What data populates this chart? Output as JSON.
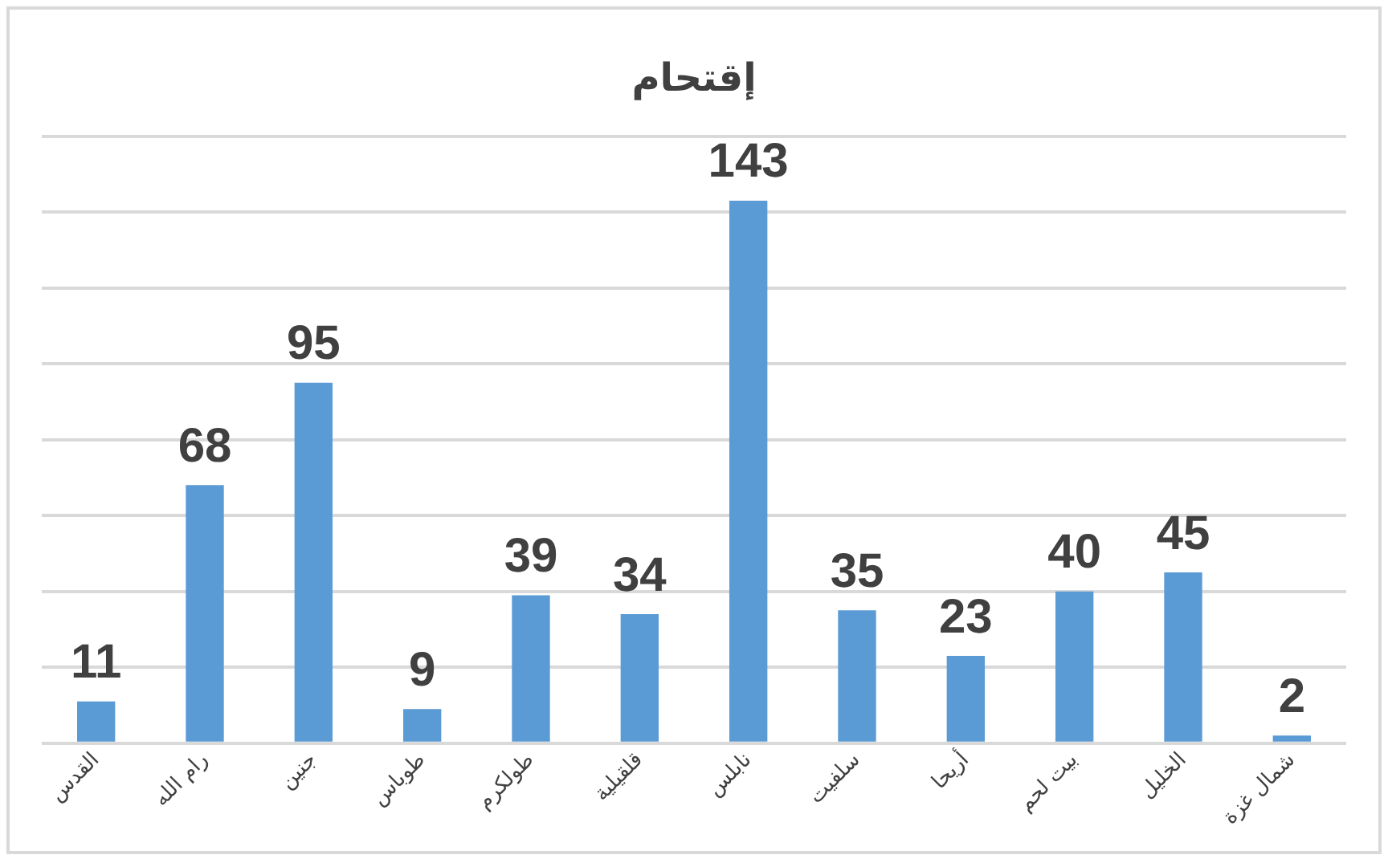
{
  "chart_data": {
    "type": "bar",
    "title": "إقتحام",
    "categories": [
      "القدس",
      "رام الله",
      "جنين",
      "طوباس",
      "طولكرم",
      "قلقيلية",
      "نابلس",
      "سلفيت",
      "أريحا",
      "بيت لحم",
      "الخليل",
      "شمال غزة"
    ],
    "values": [
      11,
      68,
      95,
      9,
      39,
      34,
      143,
      35,
      23,
      40,
      45,
      2
    ],
    "color": "#5b9bd5",
    "ylim": [
      0,
      160
    ],
    "yticks": [
      0,
      20,
      40,
      60,
      80,
      100,
      120,
      140,
      160
    ],
    "grid": "y",
    "tick_labels": "x",
    "data_labels": true,
    "legend": false
  }
}
